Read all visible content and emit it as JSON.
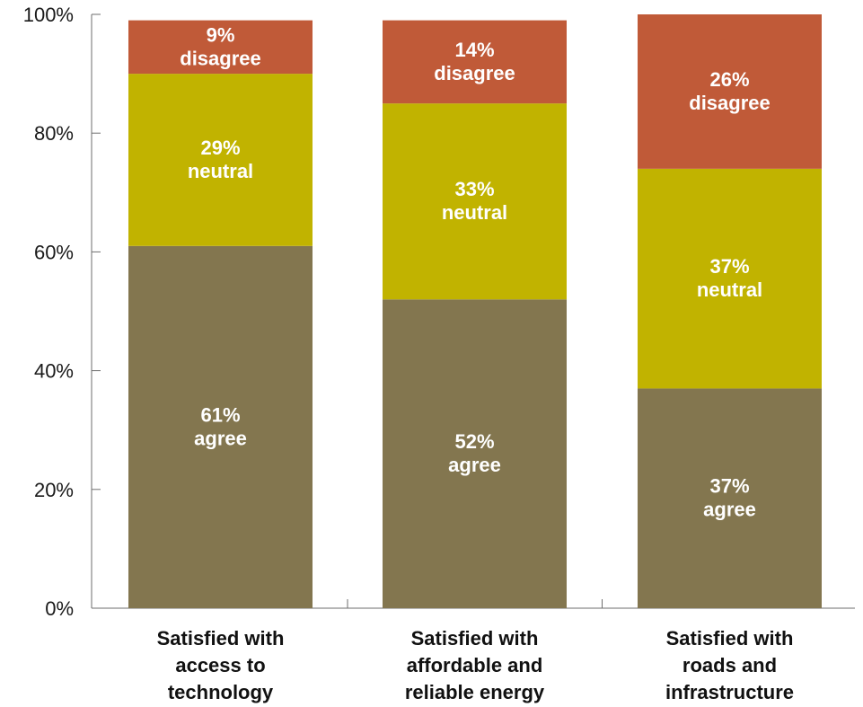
{
  "chart_data": {
    "type": "bar",
    "stacked": true,
    "categories": [
      [
        "Satisfied with",
        "access to",
        "technology"
      ],
      [
        "Satisfied with",
        "affordable and",
        "reliable energy"
      ],
      [
        "Satisfied with",
        "roads and",
        "infrastructure"
      ]
    ],
    "series": [
      {
        "key": "agree",
        "values": [
          61,
          52,
          37
        ],
        "color": "#83764f",
        "labels": [
          [
            "61%",
            "agree"
          ],
          [
            "52%",
            "agree"
          ],
          [
            "37%",
            "agree"
          ]
        ]
      },
      {
        "key": "neutral",
        "values": [
          29,
          33,
          37
        ],
        "color": "#c1b300",
        "labels": [
          [
            "29%",
            "neutral"
          ],
          [
            "33%",
            "neutral"
          ],
          [
            "37%",
            "neutral"
          ]
        ]
      },
      {
        "key": "disagree",
        "values": [
          9,
          14,
          26
        ],
        "color": "#c05a38",
        "labels": [
          [
            "9%",
            "disagree"
          ],
          [
            "14%",
            "disagree"
          ],
          [
            "26%",
            "disagree"
          ]
        ]
      }
    ],
    "y_ticks": [
      "0%",
      "20%",
      "40%",
      "60%",
      "80%",
      "100%"
    ],
    "y_tick_values": [
      0,
      20,
      40,
      60,
      80,
      100
    ],
    "ylim": [
      0,
      100
    ],
    "grid": false,
    "legend": "none",
    "title": "",
    "xlabel": "",
    "ylabel": ""
  }
}
